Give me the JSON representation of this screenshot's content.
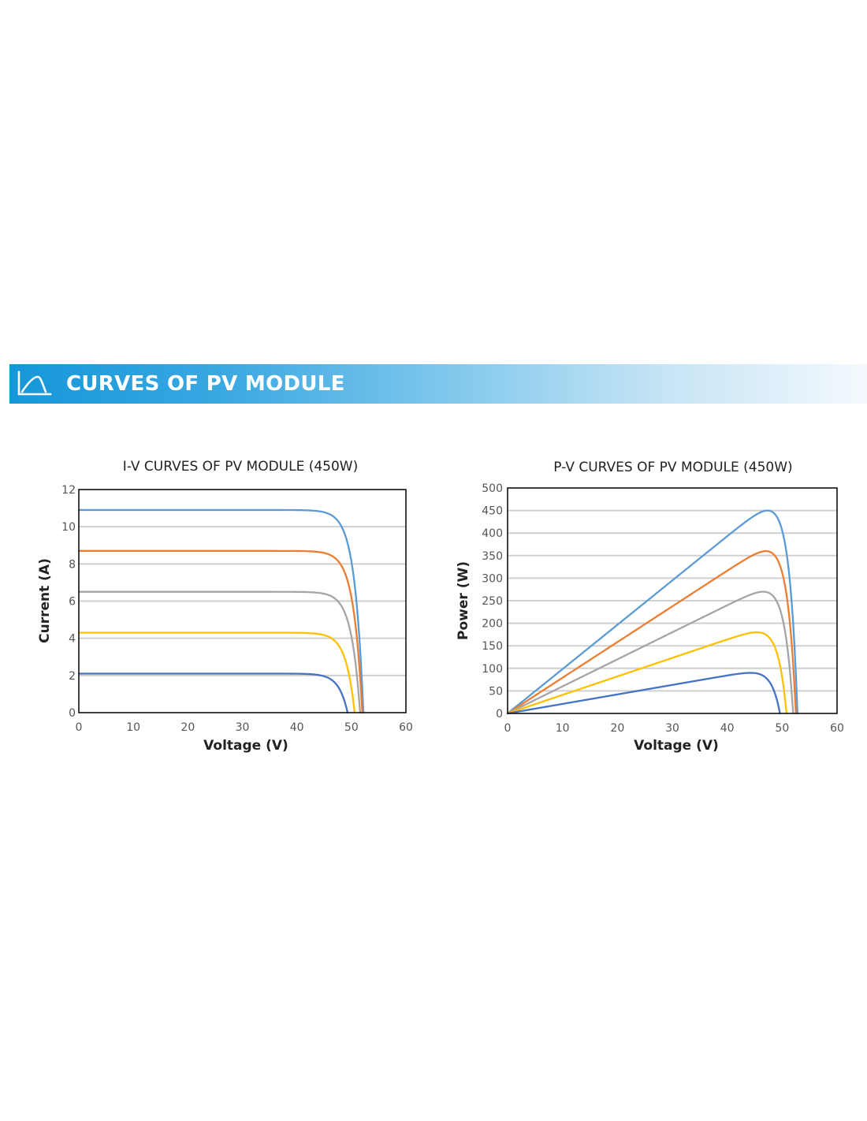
{
  "header": {
    "title": "CURVES OF PV MODULE",
    "icon": "curve-chart-icon"
  },
  "chart_data": [
    {
      "type": "line",
      "title": "I-V CURVES OF PV MODULE (450W)",
      "xlabel": "Voltage (V)",
      "ylabel": "Current (A)",
      "xlim": [
        0,
        60
      ],
      "ylim": [
        0,
        12
      ],
      "xticks": [
        "0",
        "10",
        "20",
        "30",
        "40",
        "50",
        "60"
      ],
      "yticks": [
        "0",
        "2",
        "4",
        "6",
        "8",
        "10",
        "12"
      ],
      "grid": "horizontal",
      "series": [
        {
          "color": "#5b9bd5",
          "isc": 10.9,
          "voc": 52.2
        },
        {
          "color": "#ed7d31",
          "isc": 8.7,
          "voc": 52.0
        },
        {
          "color": "#a5a5a5",
          "isc": 6.5,
          "voc": 51.6
        },
        {
          "color": "#ffc000",
          "isc": 4.3,
          "voc": 50.6
        },
        {
          "color": "#4472c4",
          "isc": 2.1,
          "voc": 49.3
        }
      ]
    },
    {
      "type": "line",
      "title": "P-V CURVES OF PV MODULE (450W)",
      "xlabel": "Voltage (V)",
      "ylabel": "Power (W)",
      "xlim": [
        0,
        60
      ],
      "ylim": [
        0,
        500
      ],
      "xticks": [
        "0",
        "10",
        "20",
        "30",
        "40",
        "50",
        "60"
      ],
      "yticks": [
        "0",
        "50",
        "100",
        "150",
        "200",
        "250",
        "300",
        "350",
        "400",
        "450",
        "500"
      ],
      "grid": "horizontal",
      "series": [
        {
          "color": "#5b9bd5",
          "pmax": 450,
          "vmp": 44,
          "voc": 52.8
        },
        {
          "color": "#ed7d31",
          "pmax": 360,
          "vmp": 44,
          "voc": 52.5
        },
        {
          "color": "#a5a5a5",
          "pmax": 270,
          "vmp": 44,
          "voc": 52.0
        },
        {
          "color": "#ffc000",
          "pmax": 180,
          "vmp": 44,
          "voc": 50.8
        },
        {
          "color": "#4472c4",
          "pmax": 90,
          "vmp": 43.5,
          "voc": 49.6
        }
      ]
    }
  ]
}
